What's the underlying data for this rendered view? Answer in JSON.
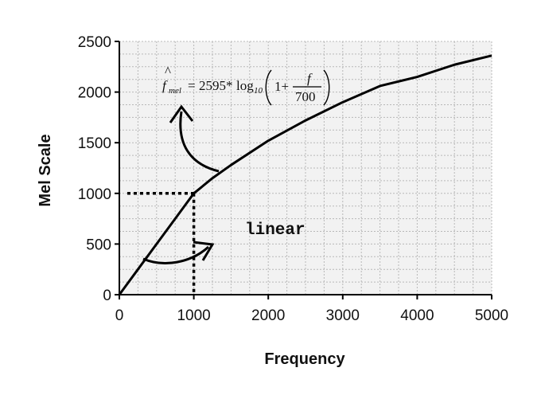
{
  "chart_data": {
    "type": "line",
    "title": "",
    "xlabel": "Frequency",
    "ylabel": "Mel Scale",
    "xlim": [
      0,
      5000
    ],
    "ylim": [
      0,
      2500
    ],
    "x_ticks": [
      "0",
      "1000",
      "2000",
      "3000",
      "4000",
      "5000"
    ],
    "y_ticks": [
      "0",
      "500",
      "1000",
      "1500",
      "2000",
      "2500"
    ],
    "x_tick_values": [
      0,
      1000,
      2000,
      3000,
      4000,
      5000
    ],
    "y_tick_values": [
      0,
      500,
      1000,
      1500,
      2000,
      2500
    ],
    "grid": true,
    "series": [
      {
        "x": [
          0,
          250,
          500,
          750,
          1000,
          1250,
          1500,
          2000,
          2500,
          3000,
          3500,
          4000,
          4500,
          5000
        ],
        "y": [
          0,
          250,
          500,
          750,
          1000,
          1150,
          1280,
          1520,
          1720,
          1900,
          2060,
          2150,
          2270,
          2360
        ]
      }
    ],
    "guide_point": {
      "x": 1000,
      "y": 1000
    },
    "annotations": {
      "linear": "linear",
      "formula": {
        "lhs": "f",
        "hat": "^",
        "lhs_sub": "mel",
        "equals": "=",
        "coef": "2595*",
        "log": "log",
        "log_base": "10",
        "one_plus": "1+",
        "num": "f",
        "den": "700"
      }
    },
    "colors": {
      "line": "#000000",
      "grid": "#b8b8b8",
      "plot_bg": "#f2f2f2"
    }
  }
}
